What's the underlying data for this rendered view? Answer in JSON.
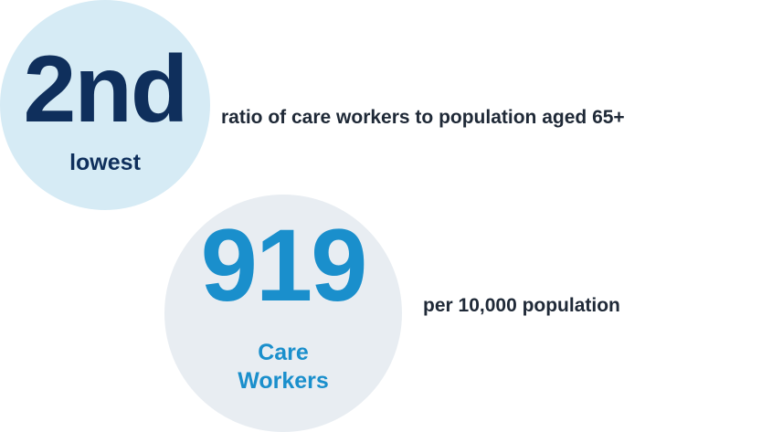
{
  "stat_rank": {
    "value": "2nd",
    "subtitle": "lowest",
    "description": "ratio of care workers to population aged 65+"
  },
  "stat_count": {
    "value": "919",
    "subtitle_line1": "Care",
    "subtitle_line2": "Workers",
    "description": "per 10,000 population"
  },
  "colors": {
    "navy": "#0f2f5c",
    "blue": "#1a8fcc",
    "light_blue_circle": "#d6ebf5",
    "light_gray_circle": "#e8edf2",
    "text_dark": "#1f2937"
  }
}
